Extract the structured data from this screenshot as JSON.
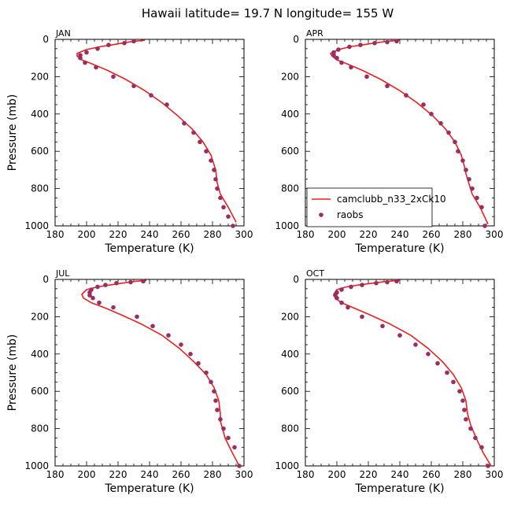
{
  "figure_title": "Hawaii   latitude= 19.7 N longitude= 155 W",
  "legend": {
    "model_label": "camclubb_n33_2xCk10",
    "obs_label": "raobs",
    "panel": "APR"
  },
  "colors": {
    "model_line": "#e8231f",
    "obs_dots": "#9b2d62"
  },
  "chart_data": [
    {
      "type": "line",
      "panel_label": "JAN",
      "xlabel": "Temperature (K)",
      "ylabel": "Pressure (mb)",
      "xlim": [
        180,
        300
      ],
      "ylim": [
        1000,
        0
      ],
      "y_inverted": true,
      "xticks": [
        "180",
        "200",
        "220",
        "240",
        "260",
        "280",
        "300"
      ],
      "yticks": [
        "0",
        "200",
        "400",
        "600",
        "800",
        "1000"
      ],
      "series": [
        {
          "name": "camclubb_n33_2xCk10",
          "kind": "line",
          "x": [
            237,
            230,
            223,
            216,
            208,
            200,
            194,
            194,
            197,
            203,
            213,
            225,
            237,
            248,
            258,
            267,
            274,
            279,
            282,
            283,
            285,
            290,
            295
          ],
          "y": [
            5,
            10,
            20,
            30,
            40,
            55,
            75,
            90,
            110,
            130,
            165,
            215,
            275,
            340,
            410,
            480,
            550,
            620,
            700,
            770,
            830,
            900,
            980
          ]
        },
        {
          "name": "raobs",
          "kind": "scatter",
          "x": [
            230,
            224,
            214,
            207,
            200,
            196,
            196,
            199,
            206,
            217,
            230,
            241,
            251,
            262,
            268,
            272,
            276,
            279,
            281,
            282,
            283,
            285,
            287,
            290,
            293
          ],
          "y": [
            10,
            20,
            30,
            50,
            70,
            85,
            100,
            125,
            150,
            200,
            250,
            300,
            350,
            450,
            500,
            550,
            600,
            650,
            700,
            750,
            800,
            850,
            900,
            950,
            1000
          ]
        }
      ]
    },
    {
      "type": "line",
      "panel_label": "APR",
      "xlabel": "Temperature (K)",
      "ylabel": "",
      "xlim": [
        180,
        300
      ],
      "ylim": [
        1000,
        0
      ],
      "y_inverted": true,
      "xticks": [
        "180",
        "200",
        "220",
        "240",
        "260",
        "280",
        "300"
      ],
      "yticks": [
        "0",
        "200",
        "400",
        "600",
        "800",
        "1000"
      ],
      "series": [
        {
          "name": "camclubb_n33_2xCk10",
          "kind": "line",
          "x": [
            240,
            232,
            224,
            216,
            208,
            201,
            196,
            197,
            200,
            206,
            216,
            228,
            240,
            251,
            261,
            269,
            275,
            279,
            281,
            282,
            286,
            291,
            296
          ],
          "y": [
            5,
            10,
            20,
            30,
            40,
            55,
            75,
            90,
            110,
            130,
            165,
            215,
            275,
            340,
            410,
            480,
            550,
            620,
            680,
            720,
            830,
            900,
            990
          ]
        },
        {
          "name": "raobs",
          "kind": "scatter",
          "x": [
            238,
            232,
            224,
            215,
            208,
            201,
            198,
            198,
            200,
            203,
            209,
            219,
            232,
            244,
            255,
            260,
            266,
            271,
            275,
            277,
            280,
            282,
            284,
            286,
            289,
            292,
            294
          ],
          "y": [
            10,
            15,
            20,
            30,
            40,
            55,
            70,
            85,
            100,
            125,
            150,
            200,
            250,
            300,
            350,
            400,
            450,
            500,
            550,
            600,
            650,
            700,
            750,
            800,
            850,
            900,
            1000
          ]
        }
      ]
    },
    {
      "type": "line",
      "panel_label": "JUL",
      "xlabel": "Temperature (K)",
      "ylabel": "Pressure (mb)",
      "xlim": [
        180,
        300
      ],
      "ylim": [
        1000,
        0
      ],
      "y_inverted": true,
      "xticks": [
        "180",
        "200",
        "220",
        "240",
        "260",
        "280",
        "300"
      ],
      "yticks": [
        "0",
        "200",
        "400",
        "600",
        "800",
        "1000"
      ],
      "series": [
        {
          "name": "camclubb_n33_2xCk10",
          "kind": "line",
          "x": [
            238,
            231,
            223,
            215,
            207,
            200,
            197,
            198,
            203,
            211,
            222,
            235,
            248,
            259,
            268,
            276,
            281,
            284,
            285,
            285,
            288,
            292,
            297
          ],
          "y": [
            5,
            10,
            20,
            30,
            40,
            55,
            80,
            100,
            125,
            150,
            190,
            240,
            300,
            370,
            440,
            510,
            580,
            650,
            720,
            760,
            850,
            920,
            1000
          ]
        },
        {
          "name": "raobs",
          "kind": "scatter",
          "x": [
            236,
            228,
            219,
            212,
            207,
            203,
            202,
            202,
            204,
            208,
            217,
            232,
            242,
            252,
            260,
            266,
            271,
            276,
            279,
            281,
            282,
            283,
            285,
            287,
            290,
            294,
            297
          ],
          "y": [
            10,
            15,
            20,
            30,
            40,
            55,
            70,
            85,
            100,
            125,
            150,
            200,
            250,
            300,
            350,
            400,
            450,
            500,
            550,
            600,
            650,
            700,
            750,
            800,
            850,
            900,
            1000
          ]
        }
      ]
    },
    {
      "type": "line",
      "panel_label": "OCT",
      "xlabel": "Temperature (K)",
      "ylabel": "",
      "xlim": [
        180,
        300
      ],
      "ylim": [
        1000,
        0
      ],
      "y_inverted": true,
      "xticks": [
        "180",
        "200",
        "220",
        "240",
        "260",
        "280",
        "300"
      ],
      "yticks": [
        "0",
        "200",
        "400",
        "600",
        "800",
        "1000"
      ],
      "series": [
        {
          "name": "camclubb_n33_2xCk10",
          "kind": "line",
          "x": [
            240,
            232,
            223,
            214,
            206,
            200,
            198,
            199,
            203,
            210,
            221,
            234,
            247,
            258,
            267,
            274,
            279,
            282,
            283,
            285,
            289,
            293,
            298
          ],
          "y": [
            5,
            10,
            20,
            30,
            40,
            55,
            80,
            100,
            125,
            150,
            190,
            240,
            300,
            370,
            440,
            510,
            580,
            650,
            720,
            780,
            860,
            930,
            1000
          ]
        },
        {
          "name": "raobs",
          "kind": "scatter",
          "x": [
            238,
            232,
            225,
            216,
            209,
            203,
            200,
            199,
            200,
            203,
            207,
            216,
            229,
            240,
            250,
            258,
            264,
            270,
            274,
            278,
            280,
            281,
            282,
            285,
            288,
            292,
            296
          ],
          "y": [
            10,
            15,
            20,
            30,
            40,
            55,
            70,
            85,
            100,
            125,
            150,
            200,
            250,
            300,
            350,
            400,
            450,
            500,
            550,
            600,
            650,
            700,
            750,
            800,
            850,
            900,
            1000
          ]
        }
      ]
    }
  ]
}
